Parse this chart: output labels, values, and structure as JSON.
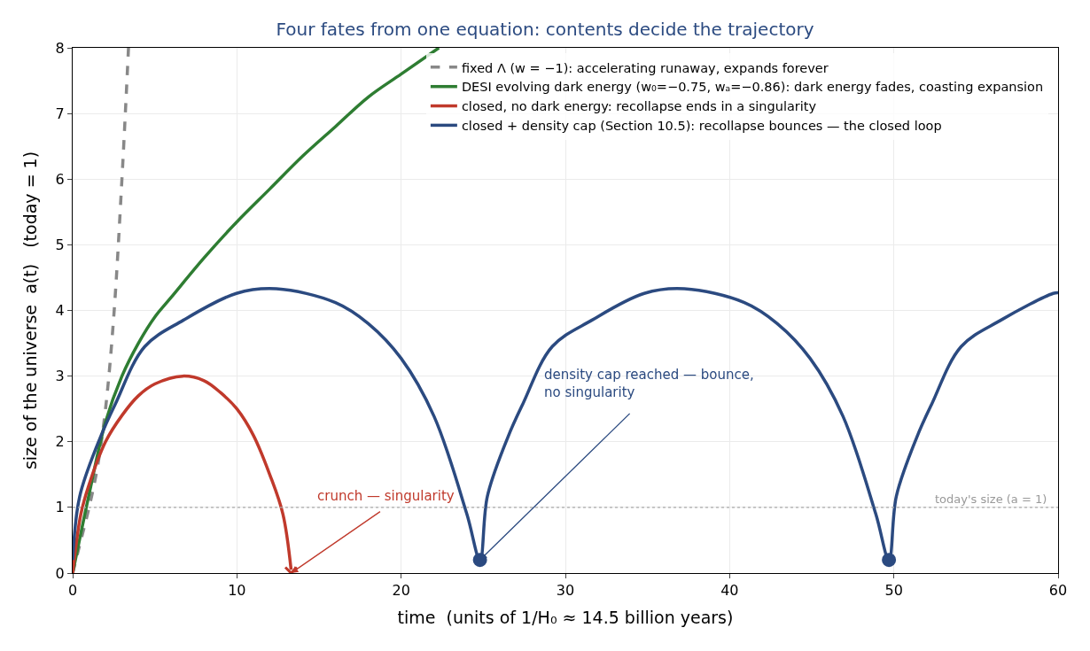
{
  "chart_data": {
    "type": "line",
    "title": "Four fates from one equation: contents decide the trajectory",
    "xlabel": "time  (units of 1/H₀ ≈ 14.5 billion years)",
    "ylabel": "size of the universe  a(t)   (today = 1)",
    "xlim": [
      0,
      60
    ],
    "xticks": [
      0,
      10,
      20,
      30,
      40,
      50,
      60
    ],
    "ylim": [
      0,
      8
    ],
    "yticks": [
      0,
      1,
      2,
      3,
      4,
      5,
      6,
      7,
      8
    ],
    "grid": true,
    "legend": "top right",
    "series": [
      {
        "name": "fixed Λ (w = −1): accelerating runaway, expands forever",
        "color": "#888888",
        "line_style": "dashed",
        "x": [
          0,
          0.5,
          1,
          1.5,
          2,
          2.5,
          3,
          3.4
        ],
        "values": [
          0,
          0.5,
          1.0,
          1.6,
          2.5,
          3.9,
          6.0,
          8.0
        ]
      },
      {
        "name": "DESI evolving dark energy (w₀=−0.75, wₐ=−0.86): dark energy fades, coasting expansion",
        "color": "#2e7d32",
        "line_style": "solid",
        "x": [
          0,
          1,
          2,
          3,
          4,
          5,
          6,
          8,
          10,
          12,
          14,
          16,
          18,
          20,
          22.3
        ],
        "values": [
          0,
          1.2,
          2.3,
          3.0,
          3.5,
          3.9,
          4.2,
          4.8,
          5.35,
          5.85,
          6.35,
          6.8,
          7.25,
          7.6,
          8.0
        ]
      },
      {
        "name": "closed, no dark energy: recollapse ends in a singularity",
        "color": "#c0392b",
        "line_style": "solid",
        "x": [
          0,
          0.5,
          1,
          2,
          3,
          4,
          5,
          6.7,
          8,
          9,
          10,
          11,
          12,
          12.8,
          13.3
        ],
        "values": [
          0,
          0.9,
          1.35,
          2.0,
          2.4,
          2.7,
          2.88,
          3.0,
          2.93,
          2.75,
          2.5,
          2.1,
          1.5,
          0.9,
          0.05
        ]
      },
      {
        "name": "closed + density cap (Section 10.5): recollapse bounces — the closed loop",
        "color": "#2b4a80",
        "line_style": "solid",
        "x": [
          0,
          0.43,
          1.69,
          2.59,
          4.39,
          6.73,
          9.97,
          12.4,
          16,
          18,
          20,
          22,
          24,
          24.8,
          25.25,
          26.5,
          27.4,
          29.2,
          31.6,
          34.8,
          37.25,
          40.9,
          42.9,
          44.9,
          46.9,
          48.9,
          49.7,
          50.15,
          51.4,
          52.3,
          54.1,
          56.5,
          59.7,
          60
        ],
        "values": [
          0.2,
          1.17,
          2.07,
          2.57,
          3.45,
          3.85,
          4.26,
          4.33,
          4.12,
          3.8,
          3.27,
          2.39,
          0.9,
          0.2,
          1.17,
          2.07,
          2.57,
          3.45,
          3.85,
          4.26,
          4.33,
          4.12,
          3.8,
          3.27,
          2.39,
          0.9,
          0.2,
          1.17,
          2.07,
          2.57,
          3.45,
          3.85,
          4.26,
          4.27
        ]
      },
      {
        "type": "scatter",
        "marker": "cross",
        "color": "#c0392b",
        "x": [
          13.3
        ],
        "values": [
          0
        ]
      },
      {
        "type": "scatter",
        "marker": "circle",
        "color": "#2b4a80",
        "x": [
          24.8,
          49.7
        ],
        "values": [
          0.2,
          0.2
        ]
      }
    ],
    "ref_lines": [
      {
        "axis": "y",
        "value": 1,
        "label": "today's size (a = 1)",
        "color": "#aaaaaa",
        "line_style": "dotted"
      }
    ],
    "annotations": [
      {
        "text": "crunch — singularity",
        "x": 13.3,
        "y": 0
      },
      {
        "text": "density cap reached — bounce,\nno singularity",
        "x": 24.8,
        "y": 0.2
      }
    ]
  }
}
